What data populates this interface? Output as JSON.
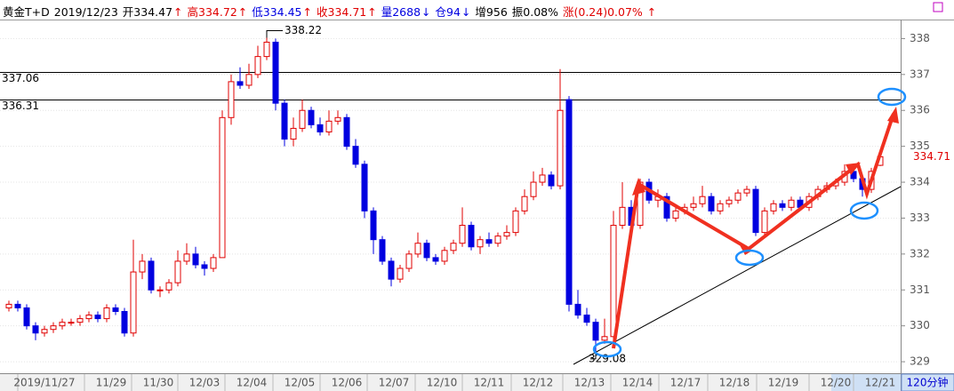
{
  "chart_data": {
    "type": "candlestick",
    "header": [
      {
        "text": "黄金T+D",
        "color": "#000000"
      },
      {
        "text": "2019/12/23",
        "color": "#000000"
      },
      {
        "text": "开334.47",
        "color": "#000000"
      },
      {
        "text": "↑",
        "color": "#e00000"
      },
      {
        "text": "高334.72",
        "color": "#e00000"
      },
      {
        "text": "↑",
        "color": "#e00000"
      },
      {
        "text": "低334.45",
        "color": "#0000e0"
      },
      {
        "text": "↑",
        "color": "#e00000"
      },
      {
        "text": "收334.71",
        "color": "#e00000"
      },
      {
        "text": "↑",
        "color": "#e00000"
      },
      {
        "text": "量2688",
        "color": "#0000e0"
      },
      {
        "text": "↓",
        "color": "#0000e0"
      },
      {
        "text": "仓94",
        "color": "#0000e0"
      },
      {
        "text": "↓",
        "color": "#0000e0"
      },
      {
        "text": "增956",
        "color": "#000000"
      },
      {
        "text": "振0.08%",
        "color": "#000000"
      },
      {
        "text": "涨(0.24)0.07%",
        "color": "#e00000"
      },
      {
        "text": "↑",
        "color": "#e00000"
      }
    ],
    "period": "120分钟",
    "date_labels": [
      "2019/11/27",
      "11/29",
      "11/30",
      "12/03",
      "12/04",
      "12/05",
      "12/06",
      "12/07",
      "12/10",
      "12/11",
      "12/12",
      "12/13",
      "12/14",
      "12/17",
      "12/18",
      "12/19",
      "12/20",
      "12/21"
    ],
    "ylim": [
      328.68,
      338.53
    ],
    "yticks": [
      329,
      330,
      331,
      332,
      333,
      334,
      335,
      336,
      337,
      338
    ],
    "levels": [
      337.06,
      336.31
    ],
    "high_mark": 338.22,
    "low_mark": 329.08,
    "last_price": 334.71,
    "up_color": "#e00000",
    "down_color": "#0000e0",
    "ohlc": [
      [
        330.5,
        330.7,
        330.4,
        330.6
      ],
      [
        330.6,
        330.7,
        330.4,
        330.5
      ],
      [
        330.5,
        330.6,
        329.9,
        330.0
      ],
      [
        330.0,
        330.1,
        329.6,
        329.8
      ],
      [
        329.8,
        330.0,
        329.7,
        329.9
      ],
      [
        329.9,
        330.1,
        329.8,
        330.0
      ],
      [
        330.0,
        330.2,
        329.9,
        330.1
      ],
      [
        330.1,
        330.2,
        330.0,
        330.1
      ],
      [
        330.1,
        330.3,
        330.0,
        330.2
      ],
      [
        330.2,
        330.4,
        330.1,
        330.3
      ],
      [
        330.3,
        330.4,
        330.1,
        330.2
      ],
      [
        330.2,
        330.6,
        330.1,
        330.5
      ],
      [
        330.5,
        330.6,
        330.3,
        330.4
      ],
      [
        330.4,
        330.5,
        329.7,
        329.8
      ],
      [
        329.8,
        332.4,
        329.7,
        331.5
      ],
      [
        331.5,
        332.0,
        331.3,
        331.8
      ],
      [
        331.8,
        331.9,
        330.9,
        331.0
      ],
      [
        331.0,
        331.1,
        330.8,
        331.0
      ],
      [
        331.0,
        331.3,
        330.9,
        331.2
      ],
      [
        331.2,
        332.1,
        331.1,
        331.8
      ],
      [
        331.8,
        332.3,
        331.7,
        332.0
      ],
      [
        332.0,
        332.2,
        331.6,
        331.7
      ],
      [
        331.7,
        331.8,
        331.4,
        331.6
      ],
      [
        331.6,
        332.0,
        331.5,
        331.9
      ],
      [
        331.9,
        336.0,
        331.9,
        335.8
      ],
      [
        335.8,
        337.0,
        335.6,
        336.8
      ],
      [
        336.8,
        337.2,
        336.6,
        336.7
      ],
      [
        336.7,
        337.3,
        336.6,
        337.0
      ],
      [
        337.0,
        337.8,
        336.9,
        337.5
      ],
      [
        337.5,
        338.22,
        337.4,
        337.9
      ],
      [
        337.9,
        338.0,
        336.0,
        336.2
      ],
      [
        336.2,
        336.3,
        335.0,
        335.2
      ],
      [
        335.2,
        335.8,
        335.0,
        335.5
      ],
      [
        335.5,
        336.3,
        335.4,
        336.0
      ],
      [
        336.0,
        336.1,
        335.5,
        335.6
      ],
      [
        335.6,
        335.8,
        335.3,
        335.4
      ],
      [
        335.4,
        336.0,
        335.3,
        335.7
      ],
      [
        335.7,
        336.0,
        335.6,
        335.8
      ],
      [
        335.8,
        335.9,
        334.9,
        335.0
      ],
      [
        335.0,
        335.2,
        334.4,
        334.5
      ],
      [
        334.5,
        334.6,
        333.0,
        333.2
      ],
      [
        333.2,
        333.3,
        332.0,
        332.4
      ],
      [
        332.4,
        332.5,
        331.7,
        331.8
      ],
      [
        331.8,
        331.9,
        331.1,
        331.3
      ],
      [
        331.3,
        331.7,
        331.2,
        331.6
      ],
      [
        331.6,
        332.1,
        331.5,
        332.0
      ],
      [
        332.0,
        332.6,
        331.9,
        332.3
      ],
      [
        332.3,
        332.4,
        331.8,
        331.9
      ],
      [
        331.9,
        332.0,
        331.7,
        331.8
      ],
      [
        331.8,
        332.2,
        331.7,
        332.1
      ],
      [
        332.1,
        332.4,
        332.0,
        332.3
      ],
      [
        332.3,
        333.3,
        332.2,
        332.8
      ],
      [
        332.8,
        332.9,
        332.1,
        332.2
      ],
      [
        332.2,
        332.5,
        332.0,
        332.4
      ],
      [
        332.4,
        332.6,
        332.2,
        332.3
      ],
      [
        332.3,
        332.6,
        332.2,
        332.5
      ],
      [
        332.5,
        332.8,
        332.4,
        332.6
      ],
      [
        332.6,
        333.3,
        332.5,
        333.2
      ],
      [
        333.2,
        333.8,
        333.1,
        333.6
      ],
      [
        333.6,
        334.3,
        333.5,
        334.0
      ],
      [
        334.0,
        334.4,
        333.9,
        334.2
      ],
      [
        334.2,
        334.3,
        333.8,
        333.9
      ],
      [
        333.9,
        337.15,
        333.8,
        336.0
      ],
      [
        336.3,
        336.4,
        330.4,
        330.6
      ],
      [
        330.6,
        331.0,
        330.2,
        330.3
      ],
      [
        330.3,
        330.5,
        330.0,
        330.1
      ],
      [
        330.1,
        330.2,
        329.08,
        329.6
      ],
      [
        329.6,
        330.2,
        329.5,
        329.7
      ],
      [
        329.7,
        333.2,
        329.6,
        332.8
      ],
      [
        332.8,
        334.0,
        332.7,
        333.3
      ],
      [
        333.3,
        333.5,
        332.7,
        332.8
      ],
      [
        332.8,
        334.1,
        332.7,
        334.0
      ],
      [
        334.0,
        334.1,
        333.4,
        333.5
      ],
      [
        333.5,
        333.8,
        333.3,
        333.6
      ],
      [
        333.6,
        333.7,
        332.9,
        333.0
      ],
      [
        333.0,
        333.3,
        332.9,
        333.2
      ],
      [
        333.2,
        333.4,
        333.1,
        333.3
      ],
      [
        333.3,
        333.6,
        333.2,
        333.4
      ],
      [
        333.4,
        333.9,
        333.3,
        333.6
      ],
      [
        333.6,
        333.7,
        333.1,
        333.2
      ],
      [
        333.2,
        333.5,
        333.1,
        333.4
      ],
      [
        333.4,
        333.6,
        333.3,
        333.5
      ],
      [
        333.5,
        333.8,
        333.4,
        333.7
      ],
      [
        333.7,
        333.9,
        333.6,
        333.8
      ],
      [
        333.8,
        333.9,
        332.5,
        332.6
      ],
      [
        332.6,
        333.3,
        332.5,
        333.2
      ],
      [
        333.2,
        333.5,
        333.1,
        333.4
      ],
      [
        333.4,
        333.5,
        333.2,
        333.3
      ],
      [
        333.3,
        333.6,
        333.2,
        333.5
      ],
      [
        333.5,
        333.6,
        333.2,
        333.3
      ],
      [
        333.3,
        333.7,
        333.2,
        333.6
      ],
      [
        333.6,
        333.9,
        333.5,
        333.8
      ],
      [
        333.8,
        334.0,
        333.7,
        333.9
      ],
      [
        333.9,
        334.1,
        333.8,
        334.0
      ],
      [
        334.0,
        334.5,
        333.9,
        334.3
      ],
      [
        334.3,
        334.4,
        334.0,
        334.1
      ],
      [
        334.1,
        334.2,
        333.6,
        333.8
      ],
      [
        333.8,
        334.4,
        333.7,
        334.3
      ],
      [
        334.47,
        334.72,
        334.45,
        334.71
      ]
    ]
  }
}
